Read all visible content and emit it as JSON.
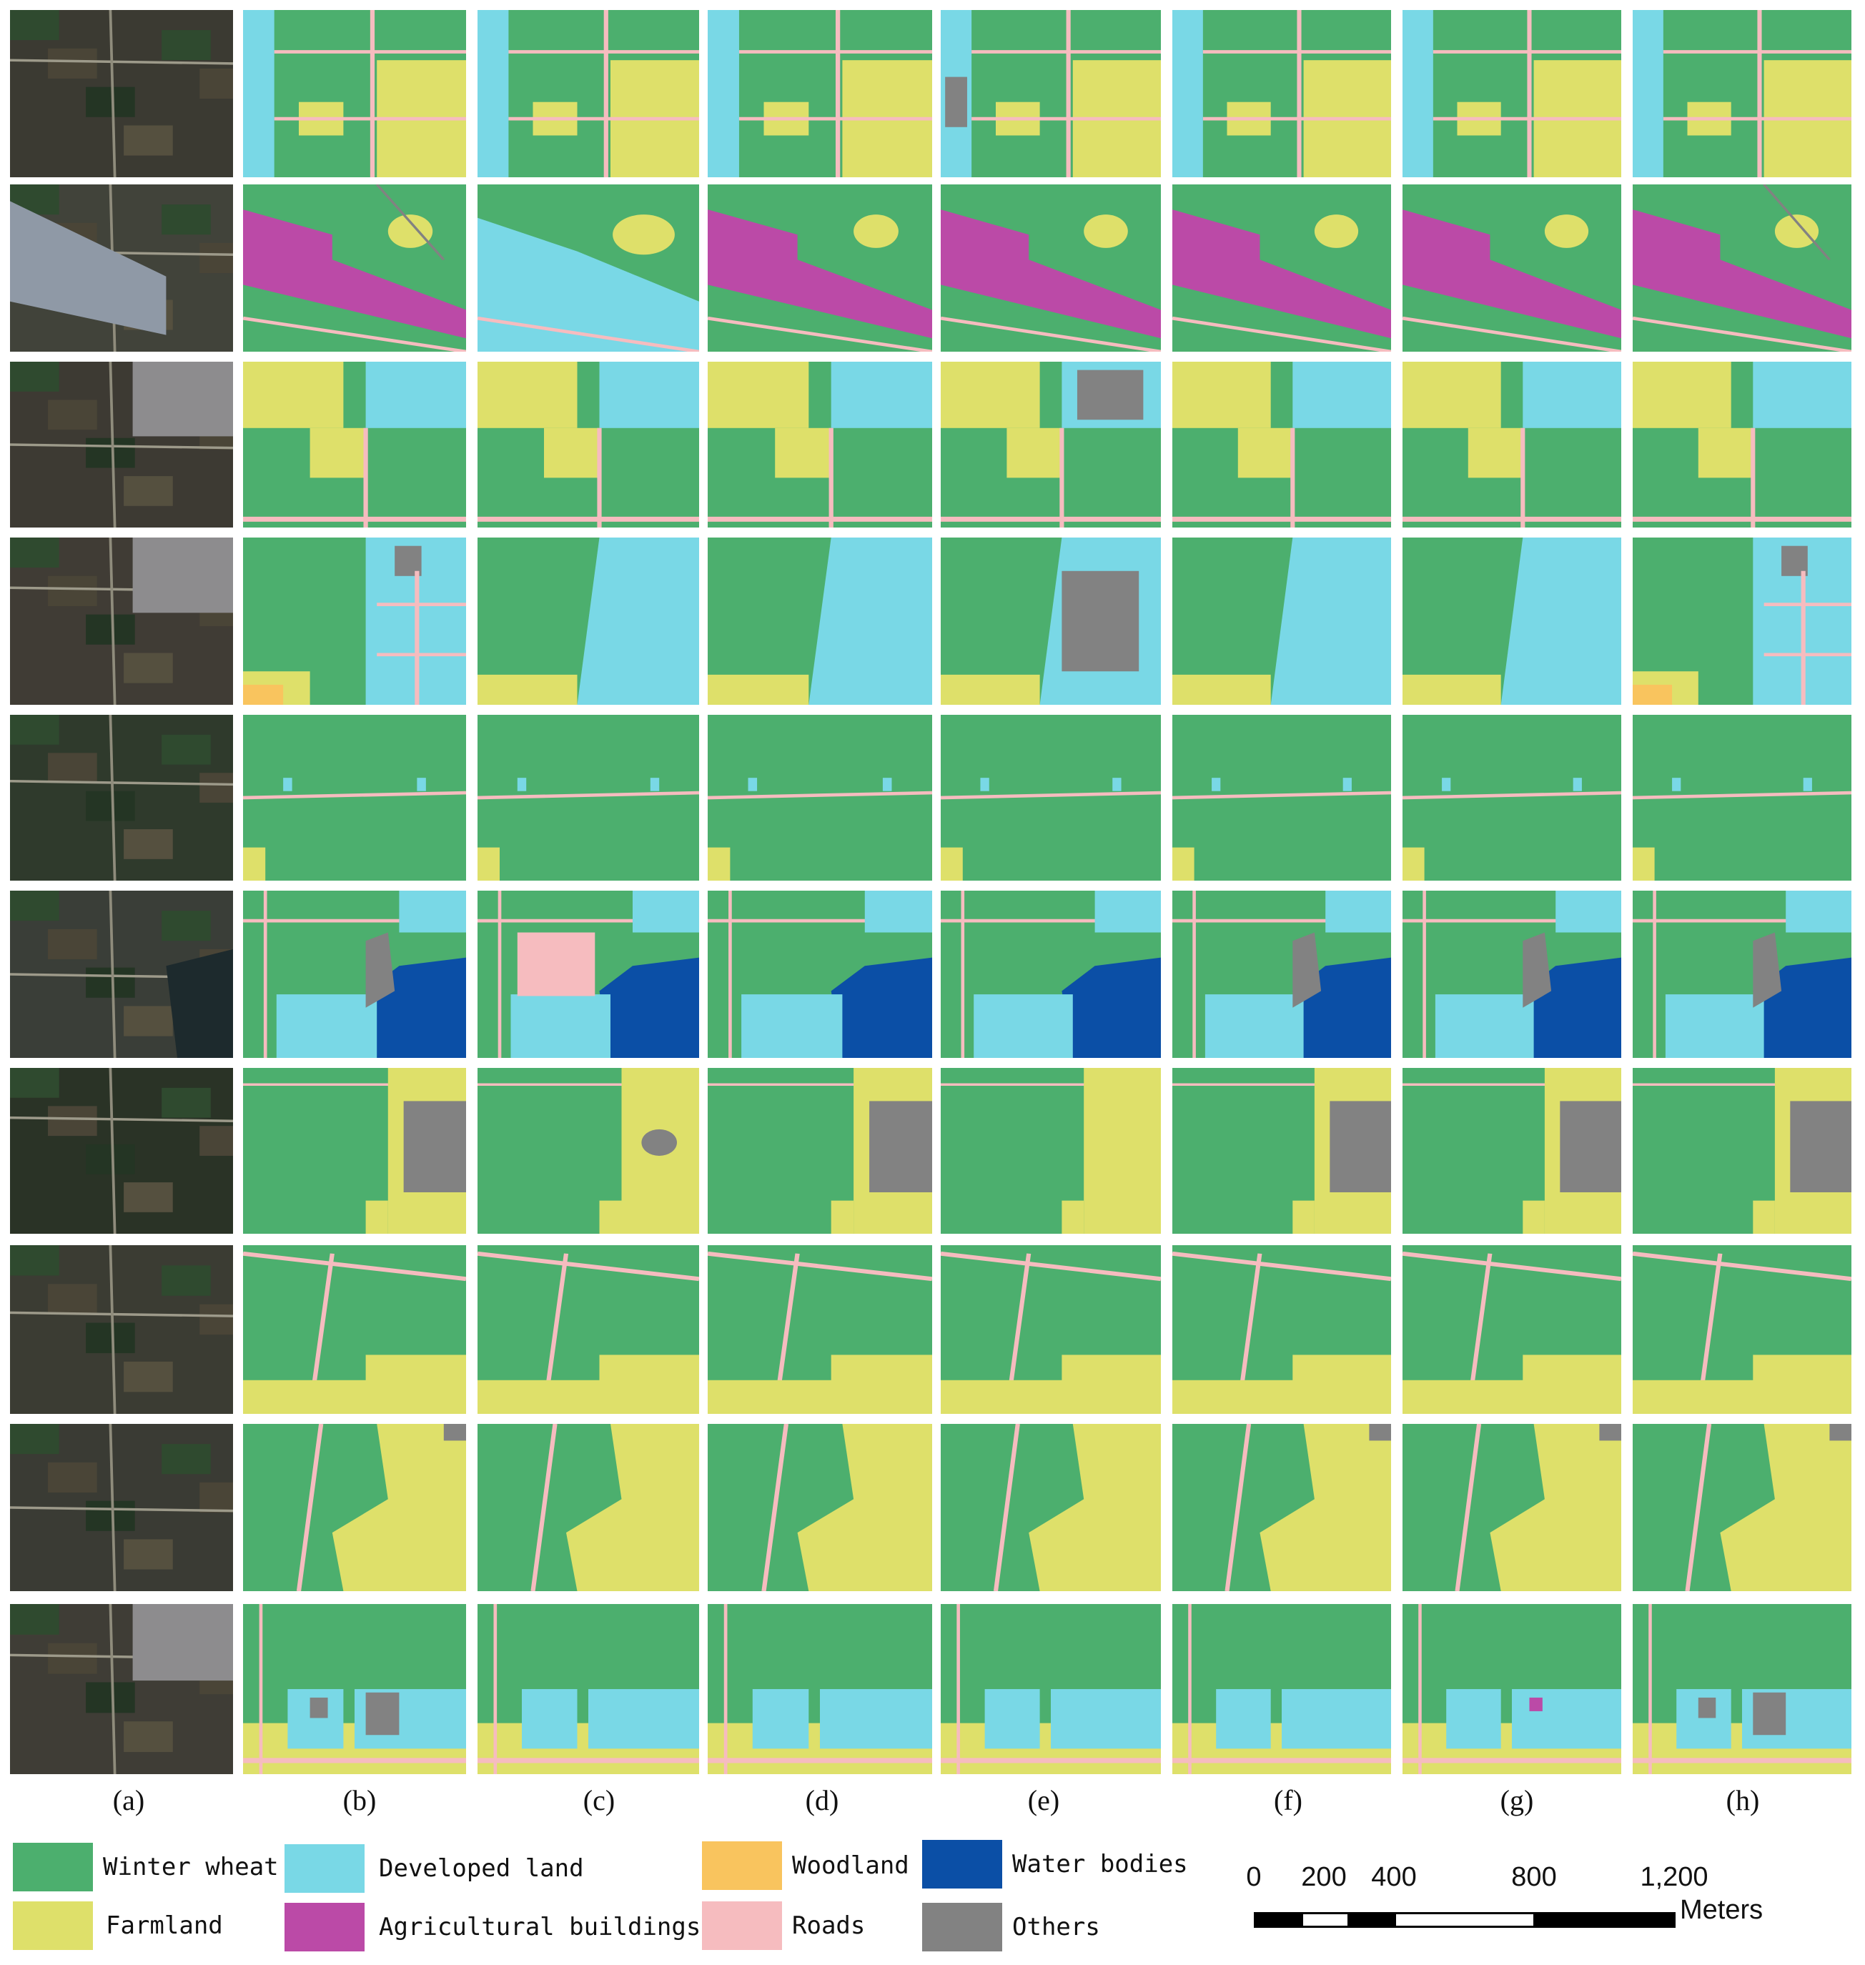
{
  "colors": {
    "winter_wheat": "#4caf6e",
    "farmland": "#dee06a",
    "developed_land": "#79d8e6",
    "woodland": "#f9c45e",
    "agricultural_buildings": "#bb4aa7",
    "roads": "#f6bcbf",
    "water_bodies": "#0b4fa6",
    "others": "#828282"
  },
  "panels": [
    "(a)",
    "(b)",
    "(c)",
    "(d)",
    "(e)",
    "(f)",
    "(g)",
    "(h)"
  ],
  "legend": [
    {
      "key": "winter_wheat",
      "label": "Winter wheat"
    },
    {
      "key": "farmland",
      "label": "Farmland"
    },
    {
      "key": "developed_land",
      "label": "Developed land"
    },
    {
      "key": "agricultural_buildings",
      "label": "Agricultural buildings"
    },
    {
      "key": "woodland",
      "label": "Woodland"
    },
    {
      "key": "roads",
      "label": "Roads"
    },
    {
      "key": "water_bodies",
      "label": "Water bodies"
    },
    {
      "key": "others",
      "label": "Others"
    }
  ],
  "scale_bar": {
    "ticks": [
      "0",
      "200",
      "400",
      "800",
      "1,200"
    ],
    "unit": "Meters"
  }
}
